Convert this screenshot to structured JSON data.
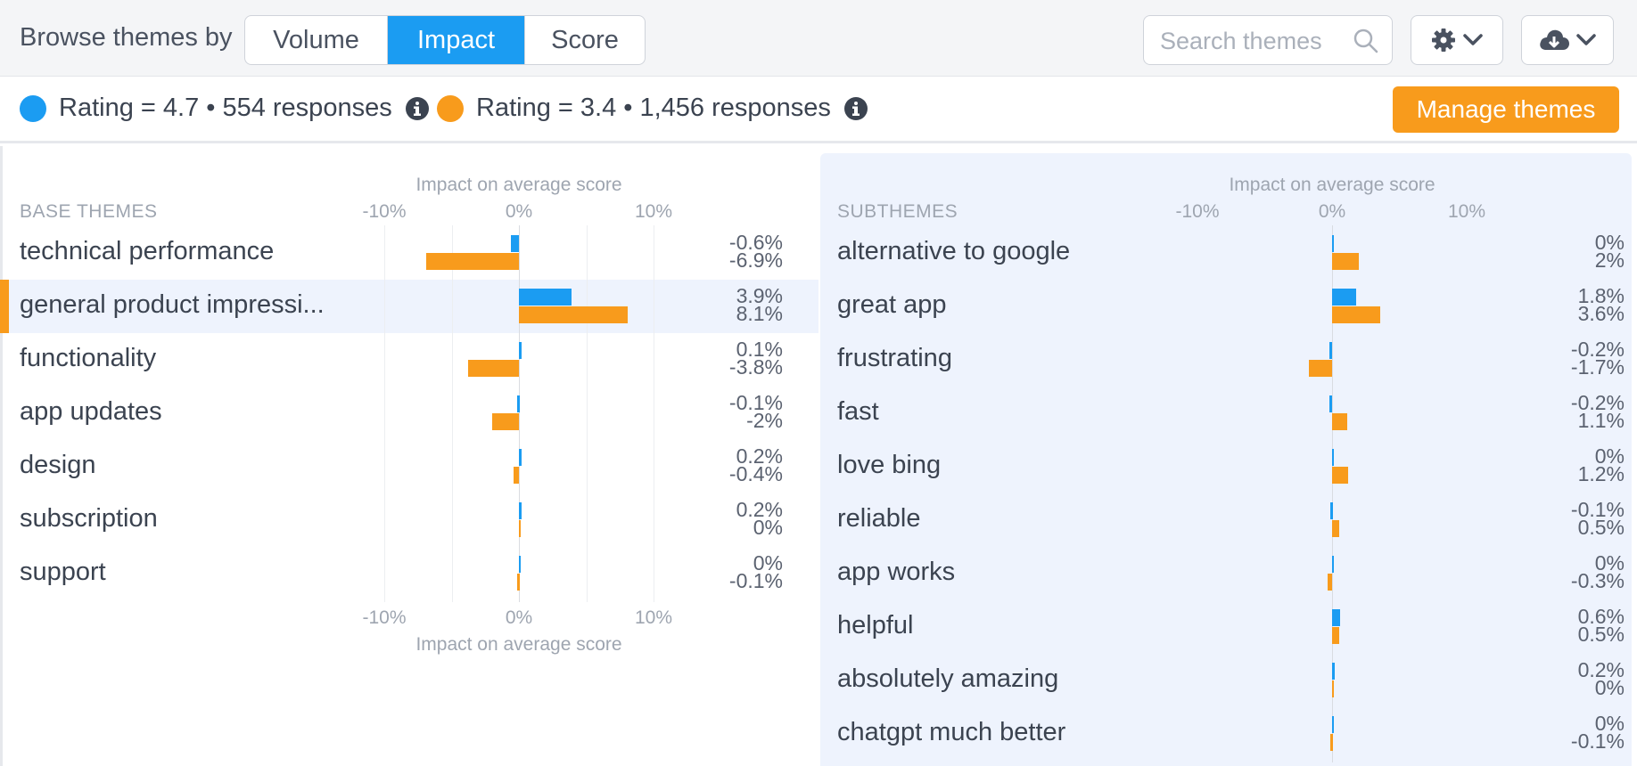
{
  "header": {
    "browse_label": "Browse themes by",
    "segments": [
      "Volume",
      "Impact",
      "Score"
    ],
    "active_segment": 1,
    "search_placeholder": "Search themes",
    "settings_icon": "gear-icon",
    "download_icon": "cloud-download-icon"
  },
  "legend": {
    "items": [
      {
        "label": "Rating = 4.7 • 554 responses",
        "color": "#1b9cf2"
      },
      {
        "label": "Rating = 3.4 • 1,456 responses",
        "color": "#f89b1c"
      }
    ],
    "manage_button": "Manage themes"
  },
  "colors": {
    "blue": "#1b9cf2",
    "orange": "#f89b1c"
  },
  "chart_data": [
    {
      "type": "bar",
      "section_title": "BASE THEMES",
      "axis_title": "Impact on average score",
      "x_ticks": [
        "-10%",
        "0%",
        "10%"
      ],
      "xlim": [
        -10,
        10
      ],
      "selected_index": 1,
      "categories": [
        "technical performance",
        "general product impressi...",
        "functionality",
        "app updates",
        "design",
        "subscription",
        "support"
      ],
      "series": [
        {
          "name": "Rating = 4.7 • 554 responses",
          "values": [
            -0.6,
            3.9,
            0.1,
            -0.1,
            0.2,
            0.2,
            0
          ],
          "labels": [
            "-0.6%",
            "3.9%",
            "0.1%",
            "-0.1%",
            "0.2%",
            "0.2%",
            "0%"
          ]
        },
        {
          "name": "Rating = 3.4 • 1,456 responses",
          "values": [
            -6.9,
            8.1,
            -3.8,
            -2,
            -0.4,
            0,
            -0.1
          ],
          "labels": [
            "-6.9%",
            "8.1%",
            "-3.8%",
            "-2%",
            "-0.4%",
            "0%",
            "-0.1%"
          ]
        }
      ]
    },
    {
      "type": "bar",
      "section_title": "SUBTHEMES",
      "axis_title": "Impact on average score",
      "x_ticks": [
        "-10%",
        "0%",
        "10%"
      ],
      "xlim": [
        -10,
        10
      ],
      "categories": [
        "alternative to google",
        "great app",
        "frustrating",
        "fast",
        "love bing",
        "reliable",
        "app works",
        "helpful",
        "absolutely amazing",
        "chatgpt much better"
      ],
      "series": [
        {
          "name": "Rating = 4.7 • 554 responses",
          "values": [
            0,
            1.8,
            -0.2,
            -0.2,
            0,
            -0.1,
            0,
            0.6,
            0.2,
            0
          ],
          "labels": [
            "0%",
            "1.8%",
            "-0.2%",
            "-0.2%",
            "0%",
            "-0.1%",
            "0%",
            "0.6%",
            "0.2%",
            "0%"
          ]
        },
        {
          "name": "Rating = 3.4 • 1,456 responses",
          "values": [
            2,
            3.6,
            -1.7,
            1.1,
            1.2,
            0.5,
            -0.3,
            0.5,
            0,
            -0.1
          ],
          "labels": [
            "2%",
            "3.6%",
            "-1.7%",
            "1.1%",
            "1.2%",
            "0.5%",
            "-0.3%",
            "0.5%",
            "0%",
            "-0.1%"
          ]
        }
      ]
    }
  ]
}
